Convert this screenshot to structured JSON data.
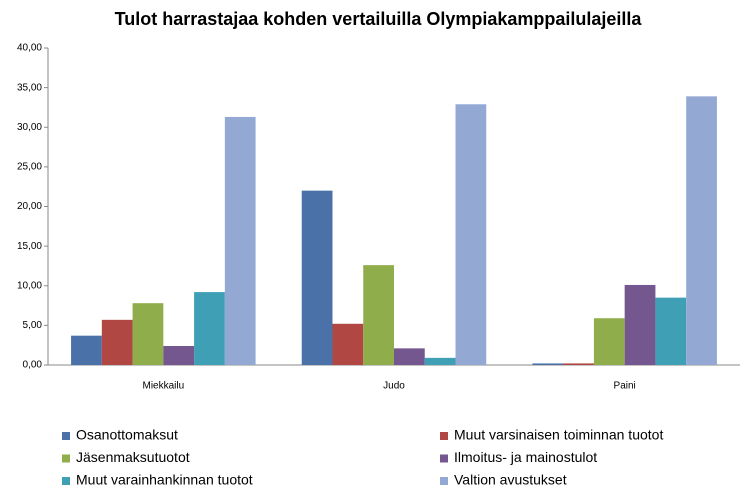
{
  "chart_data": {
    "type": "bar",
    "title": "Tulot harrastajaa kohden vertailuilla Olympiakamppailulajeilla",
    "categories": [
      "Miekkailu",
      "Judo",
      "Paini"
    ],
    "series": [
      {
        "name": "Osanottomaksut",
        "color": "#4a72a8",
        "values": [
          3.7,
          22.0,
          0.2
        ]
      },
      {
        "name": "Muut varsinaisen toiminnan tuotot",
        "color": "#b04742",
        "values": [
          5.7,
          5.2,
          0.2
        ]
      },
      {
        "name": "Jäsenmaksutuotot",
        "color": "#8fad4a",
        "values": [
          7.8,
          12.6,
          5.9
        ]
      },
      {
        "name": "Ilmoitus- ja mainostulot",
        "color": "#74578f",
        "values": [
          2.4,
          2.1,
          10.1
        ]
      },
      {
        "name": "Muut varainhankinnan tuotot",
        "color": "#3f9fb5",
        "values": [
          9.2,
          0.9,
          8.5
        ]
      },
      {
        "name": "Valtion avustukset",
        "color": "#93a9d4",
        "values": [
          31.3,
          32.9,
          33.9
        ]
      }
    ],
    "ylim": [
      0,
      40
    ],
    "yticks": [
      {
        "value": 0,
        "label": "0,00"
      },
      {
        "value": 5,
        "label": "5,00"
      },
      {
        "value": 10,
        "label": "10,00"
      },
      {
        "value": 15,
        "label": "15,00"
      },
      {
        "value": 20,
        "label": "20,00"
      },
      {
        "value": 25,
        "label": "25,00"
      },
      {
        "value": 30,
        "label": "30,00"
      },
      {
        "value": 35,
        "label": "35,00"
      },
      {
        "value": 40,
        "label": "40,00"
      }
    ],
    "grid": false
  }
}
